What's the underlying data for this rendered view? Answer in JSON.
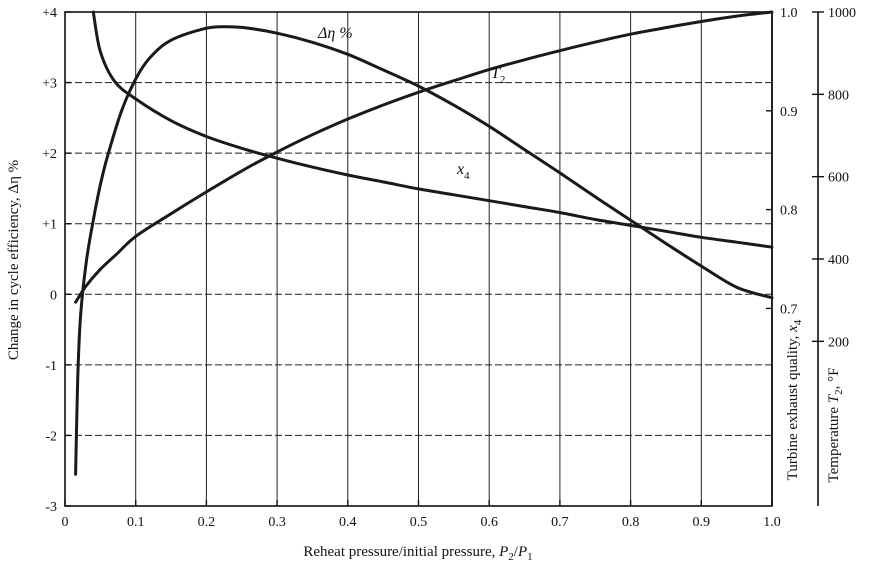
{
  "chart_data": {
    "type": "line",
    "xlabel": {
      "main": "Reheat pressure/initial pressure, ",
      "math": "P",
      "sub1": "2",
      "slash": "/",
      "math2": "P",
      "sub2": "1"
    },
    "ylabel_left": "Change in cycle efficiency, Δη %",
    "ylabel_right_inner": "Turbine exhaust quality, ",
    "ylabel_right_inner_var": "x",
    "ylabel_right_inner_sub": "4",
    "ylabel_right_outer": "Temperature ",
    "ylabel_right_outer_var": "T",
    "ylabel_right_outer_sub": "2",
    "ylabel_right_outer_unit": ", °F",
    "xlim": [
      0,
      1.0
    ],
    "ylim_left": [
      -3,
      4
    ],
    "ylim_quality": [
      0.5,
      1.0
    ],
    "ylim_temperature": [
      -200,
      1000
    ],
    "x_ticks": [
      "0",
      "0.1",
      "0.2",
      "0.3",
      "0.4",
      "0.5",
      "0.6",
      "0.7",
      "0.8",
      "0.9",
      "1.0"
    ],
    "y_left_ticks": [
      "+4",
      "+3",
      "+2",
      "+1",
      "0",
      "-1",
      "-2",
      "-3"
    ],
    "y_quality_ticks": [
      "1.0",
      "0.9",
      "0.8",
      "0.7"
    ],
    "y_temp_ticks": [
      "1000",
      "800",
      "600",
      "400",
      "200"
    ],
    "grid": true,
    "series": [
      {
        "name": "Δη %",
        "label_text": "Δη %",
        "axis": "left",
        "x": [
          0.015,
          0.018,
          0.022,
          0.03,
          0.04,
          0.05,
          0.06,
          0.08,
          0.1,
          0.12,
          0.15,
          0.2,
          0.23,
          0.26,
          0.3,
          0.35,
          0.4,
          0.45,
          0.5,
          0.55,
          0.6,
          0.65,
          0.7,
          0.75,
          0.8,
          0.85,
          0.9,
          0.95,
          1.0
        ],
        "y": [
          -2.55,
          -1.2,
          -0.3,
          0.45,
          1.05,
          1.55,
          1.95,
          2.6,
          3.05,
          3.35,
          3.6,
          3.77,
          3.79,
          3.77,
          3.7,
          3.57,
          3.4,
          3.18,
          2.95,
          2.68,
          2.38,
          2.05,
          1.72,
          1.38,
          1.05,
          0.72,
          0.4,
          0.1,
          -0.05
        ]
      },
      {
        "name": "x4",
        "label_text": "x",
        "label_sub": "4",
        "axis": "quality",
        "x": [
          0.04,
          0.05,
          0.07,
          0.1,
          0.15,
          0.2,
          0.25,
          0.3,
          0.35,
          0.4,
          0.45,
          0.5,
          0.55,
          0.6,
          0.65,
          0.7,
          0.75,
          0.8,
          0.85,
          0.9,
          0.95,
          1.0
        ],
        "y": [
          1.0,
          0.96,
          0.93,
          0.912,
          0.89,
          0.874,
          0.862,
          0.852,
          0.843,
          0.835,
          0.828,
          0.821,
          0.815,
          0.809,
          0.803,
          0.797,
          0.79,
          0.784,
          0.778,
          0.772,
          0.767,
          0.762
        ]
      },
      {
        "name": "T2",
        "label_text": "T",
        "label_sub": "2",
        "axis": "temperature",
        "x": [
          0.015,
          0.03,
          0.05,
          0.075,
          0.1,
          0.15,
          0.2,
          0.25,
          0.3,
          0.35,
          0.4,
          0.45,
          0.5,
          0.55,
          0.6,
          0.65,
          0.7,
          0.75,
          0.8,
          0.85,
          0.9,
          0.95,
          1.0
        ],
        "y": [
          295,
          335,
          375,
          415,
          455,
          510,
          563,
          614,
          660,
          702,
          740,
          774,
          805,
          833,
          860,
          884,
          906,
          927,
          946,
          962,
          977,
          990,
          1000
        ]
      }
    ]
  }
}
